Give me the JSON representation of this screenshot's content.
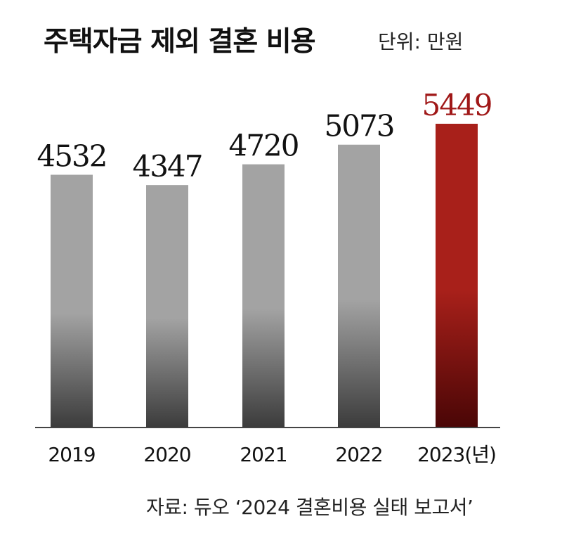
{
  "title": "주택자금 제외 결혼 비용",
  "unit_label": "단위: 만원",
  "source": "자료: 듀오 ‘2024 결혼비용 실태 보고서’",
  "colors": {
    "bar_gray_top": "#a3a3a3",
    "bar_gray_bottom": "#3c3c3c",
    "highlight_top": "#a8201a",
    "highlight_bottom": "#4a0606",
    "highlight_label": "#a01818",
    "label": "#111111",
    "axis": "#444444"
  },
  "chart_data": {
    "type": "bar",
    "categories": [
      "2019",
      "2020",
      "2021",
      "2022",
      "2023(년)"
    ],
    "values": [
      4532,
      4347,
      4720,
      5073,
      5449
    ],
    "highlight_index": 4,
    "data_labels": [
      "4532",
      "4347",
      "4720",
      "5073",
      "5449"
    ],
    "title": "주택자금 제외 결혼 비용",
    "ylabel": "단위: 만원",
    "grid": false,
    "legend": "none"
  }
}
